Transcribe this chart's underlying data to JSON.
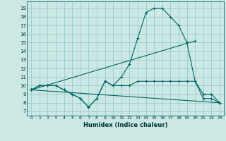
{
  "xlabel": "Humidex (Indice chaleur)",
  "background_color": "#cce8e4",
  "grid_color": "#99cccc",
  "line_color": "#006666",
  "xlim": [
    -0.5,
    23.5
  ],
  "ylim": [
    6.5,
    19.8
  ],
  "xticks": [
    0,
    1,
    2,
    3,
    4,
    5,
    6,
    7,
    8,
    9,
    10,
    11,
    12,
    13,
    14,
    15,
    16,
    17,
    18,
    19,
    20,
    21,
    22,
    23
  ],
  "yticks": [
    7,
    8,
    9,
    10,
    11,
    12,
    13,
    14,
    15,
    16,
    17,
    18,
    19
  ],
  "series": [
    {
      "x": [
        0,
        1,
        2,
        3,
        4,
        5,
        6,
        7,
        8,
        9,
        10,
        11,
        12,
        13,
        14,
        15,
        16,
        17,
        18,
        19,
        20,
        21,
        22,
        23
      ],
      "y": [
        9.5,
        10,
        10,
        10,
        9.5,
        9,
        8.5,
        7.5,
        8.5,
        10.5,
        10,
        11,
        12.5,
        15.5,
        18.5,
        19,
        19,
        18,
        17,
        15,
        10.5,
        9,
        9,
        8
      ]
    },
    {
      "x": [
        0,
        1,
        2,
        3,
        4,
        5,
        6,
        7,
        8,
        9,
        10,
        11,
        12,
        13,
        14,
        15,
        16,
        17,
        18,
        19,
        20,
        21,
        22,
        23
      ],
      "y": [
        9.5,
        10,
        10,
        10,
        9.5,
        9,
        8.5,
        7.5,
        8.5,
        10.5,
        10,
        10,
        10,
        10.5,
        10.5,
        10.5,
        10.5,
        10.5,
        10.5,
        10.5,
        10.5,
        8.5,
        8.5,
        8
      ]
    },
    {
      "x": [
        0,
        20
      ],
      "y": [
        9.5,
        15.2
      ]
    },
    {
      "x": [
        0,
        23
      ],
      "y": [
        9.5,
        8
      ]
    }
  ]
}
